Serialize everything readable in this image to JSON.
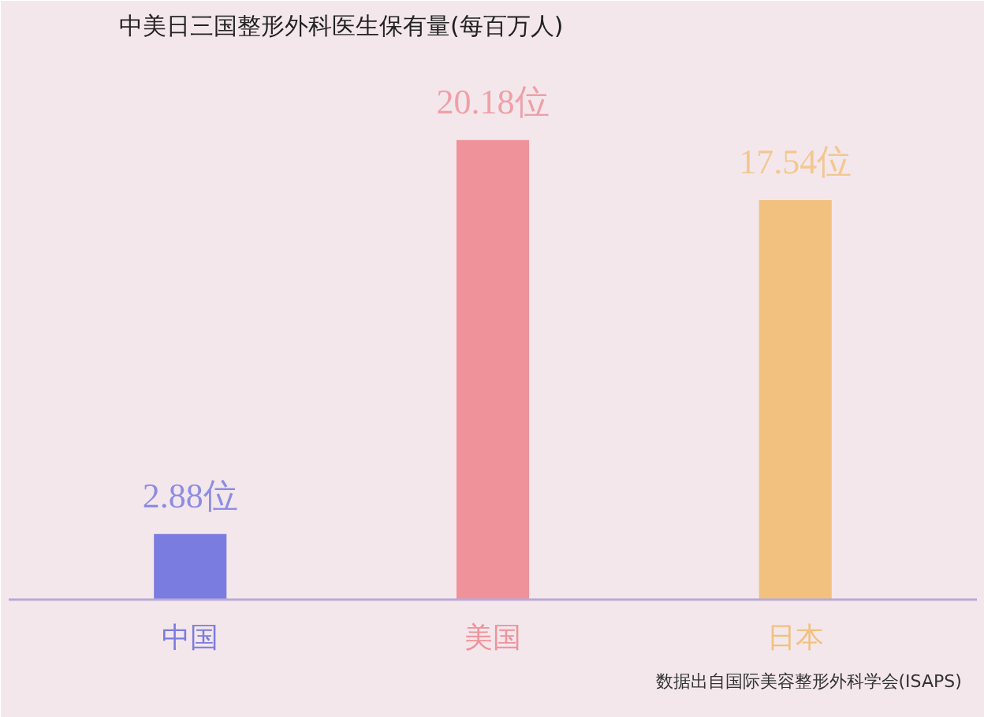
{
  "chart_data": {
    "type": "bar",
    "title": "中美日三国整形外科医生保有量(每百万人)",
    "categories": [
      "中国",
      "美国",
      "日本"
    ],
    "values": [
      2.88,
      20.18,
      17.54
    ],
    "colors": [
      "#7b7ce0",
      "#ef929a",
      "#f2c17f"
    ],
    "value_labels": [
      "2.88位",
      "20.18位",
      "17.54位"
    ],
    "annotations": [
      "数据出自国际美容整形外科学会(ISAPS)"
    ]
  }
}
